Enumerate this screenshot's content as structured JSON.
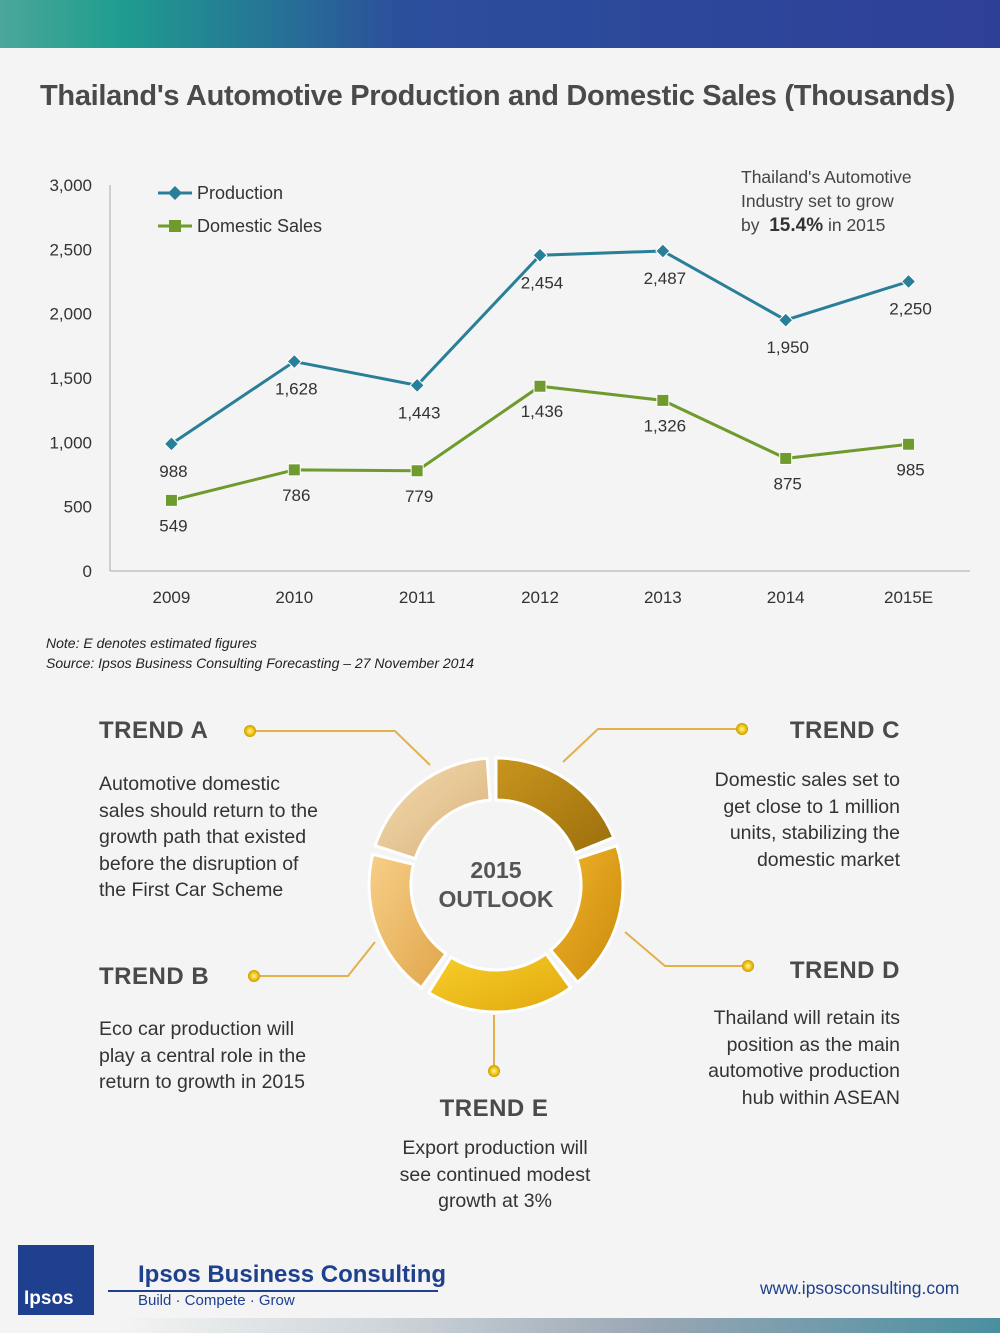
{
  "title": "Thailand's Automotive Production and Domestic Sales (Thousands)",
  "callout": {
    "line1": "Thailand's Automotive",
    "line2": "Industry set to grow",
    "by": "by",
    "value": "15.4%",
    "suffix": "in 2015"
  },
  "chart_data": {
    "type": "line",
    "categories": [
      "2009",
      "2010",
      "2011",
      "2012",
      "2013",
      "2014",
      "2015E"
    ],
    "ylim": [
      0,
      3000
    ],
    "yticks": [
      0,
      500,
      1000,
      1500,
      2000,
      2500,
      3000
    ],
    "ytick_labels": [
      "0",
      "500",
      "1,000",
      "1,500",
      "2,000",
      "2,500",
      "3,000"
    ],
    "grid": false,
    "legend_position": "top-left",
    "series": [
      {
        "name": "Production",
        "color": "#2a7f98",
        "marker": "diamond",
        "values": [
          988,
          1628,
          1443,
          2454,
          2487,
          1950,
          2250
        ],
        "labels": [
          "988",
          "1,628",
          "1,443",
          "2,454",
          "2,487",
          "1,950",
          "2,250"
        ]
      },
      {
        "name": "Domestic Sales",
        "color": "#6f9a2e",
        "marker": "square",
        "values": [
          549,
          786,
          779,
          1436,
          1326,
          875,
          985
        ],
        "labels": [
          "549",
          "786",
          "779",
          "1,436",
          "1,326",
          "875",
          "985"
        ]
      }
    ]
  },
  "notes": {
    "note": "Note: E denotes estimated figures",
    "source": "Source: Ipsos Business Consulting Forecasting –  27 November 2014"
  },
  "outlook": {
    "line1": "2015",
    "line2": "OUTLOOK"
  },
  "trends": {
    "a": {
      "heading": "TREND  A",
      "lines": [
        "Automotive domestic",
        "sales should return to the",
        "growth path that existed",
        "before the disruption of",
        "the First Car Scheme"
      ]
    },
    "b": {
      "heading": "TREND  B",
      "lines": [
        "Eco car production will",
        "play a central role in the",
        "return to growth in 2015"
      ]
    },
    "c": {
      "heading": "TREND  C",
      "lines": [
        "Domestic sales set to",
        "get close to 1 million",
        "units, stabilizing the",
        "domestic market"
      ]
    },
    "d": {
      "heading": "TREND  D",
      "lines": [
        "Thailand will retain its",
        "position as the main",
        "automotive production",
        "hub within ASEAN"
      ]
    },
    "e": {
      "heading": "TREND  E",
      "lines": [
        "Export production will",
        "see continued modest",
        "growth at 3%"
      ]
    }
  },
  "footer": {
    "logo": "Ipsos",
    "brand": "Ipsos Business Consulting",
    "tagline": "Build · Compete · Grow",
    "url": "www.ipsosconsulting.com"
  }
}
